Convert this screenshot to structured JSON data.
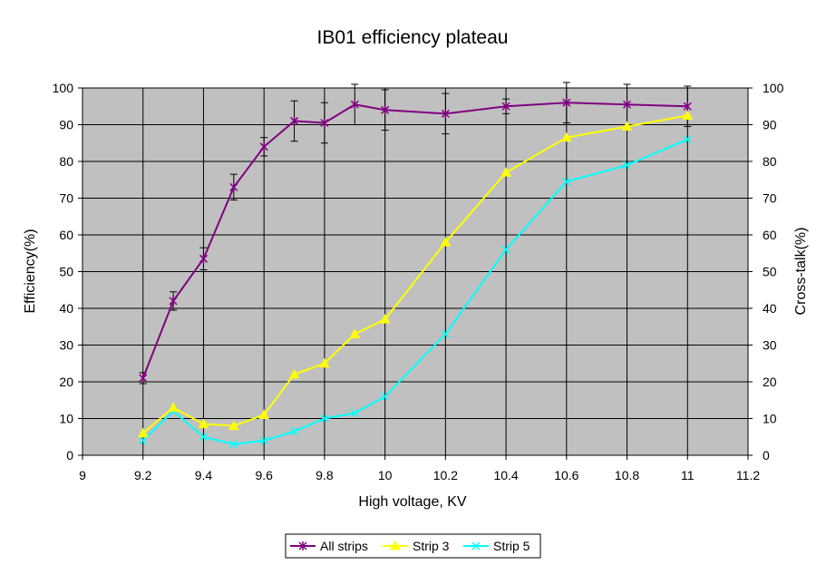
{
  "chart_data": {
    "type": "line",
    "title": "IB01 efficiency plateau",
    "xlabel": "High voltage, KV",
    "ylabel": "Efficiency(%)",
    "y2label": "Cross-talk(%)",
    "xlim": [
      9,
      11.2
    ],
    "ylim": [
      0,
      100
    ],
    "y2lim": [
      0,
      100
    ],
    "x_ticks": [
      "9",
      "9.2",
      "9.4",
      "9.6",
      "9.8",
      "10",
      "10.2",
      "10.4",
      "10.6",
      "10.8",
      "11",
      "11.2"
    ],
    "y_ticks": [
      "0",
      "10",
      "20",
      "30",
      "40",
      "50",
      "60",
      "70",
      "80",
      "90",
      "100"
    ],
    "y2_ticks": [
      "0",
      "10",
      "20",
      "30",
      "40",
      "50",
      "60",
      "70",
      "80",
      "90",
      "100"
    ],
    "grid": true,
    "plot_background": "#c0c0c0",
    "legend_position": "bottom",
    "series": [
      {
        "name": "All strips",
        "axis": "left",
        "color": "#800080",
        "marker": "star",
        "x": [
          9.2,
          9.3,
          9.4,
          9.5,
          9.6,
          9.7,
          9.8,
          9.9,
          10.0,
          10.2,
          10.4,
          10.6,
          10.8,
          11.0
        ],
        "y": [
          21,
          42,
          53.5,
          73,
          84,
          91,
          90.5,
          95.5,
          94,
          93,
          95,
          96,
          95.5,
          95
        ],
        "yerr": [
          1.5,
          2.5,
          3,
          3.5,
          2.5,
          5.5,
          5.5,
          5.5,
          5.5,
          5.5,
          2,
          5.5,
          5.5,
          5.5
        ]
      },
      {
        "name": "Strip 3",
        "axis": "right",
        "color": "#ffff00",
        "marker": "triangle",
        "x": [
          9.2,
          9.3,
          9.4,
          9.5,
          9.6,
          9.7,
          9.8,
          9.9,
          10.0,
          10.2,
          10.4,
          10.6,
          10.8,
          11.0
        ],
        "y": [
          6,
          13,
          8.5,
          8,
          11,
          22,
          25,
          33,
          37,
          58,
          77,
          86.5,
          89.5,
          92.5
        ]
      },
      {
        "name": "Strip 5",
        "axis": "right",
        "color": "#00ffff",
        "marker": "x",
        "x": [
          9.2,
          9.3,
          9.4,
          9.5,
          9.6,
          9.7,
          9.8,
          9.9,
          10.0,
          10.2,
          10.4,
          10.6,
          10.8,
          11.0
        ],
        "y": [
          4,
          12,
          5,
          3,
          4,
          6.5,
          10,
          11.5,
          16,
          33,
          56,
          74.5,
          79,
          86
        ]
      }
    ]
  }
}
